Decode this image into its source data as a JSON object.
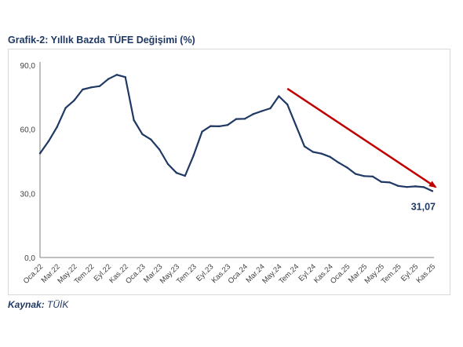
{
  "title": "Grafik-2: Yıllık Bazda TÜFE Değişimi (%)",
  "source": {
    "label": "Kaynak:",
    "value": "TÜİK"
  },
  "colors": {
    "line": "#1f3864",
    "arrow": "#c00000",
    "axis": "#7f7f7f",
    "title": "#1f3864"
  },
  "chart_data": {
    "type": "line",
    "title": "",
    "xlabel": "",
    "ylabel": "",
    "ylim": [
      0,
      90
    ],
    "yticks": [
      0,
      30,
      60,
      90
    ],
    "ytick_labels": [
      "0,0",
      "30,0",
      "60,0",
      "90,0"
    ],
    "grid": false,
    "categories": [
      "Oca.22",
      "Şub.22",
      "Mar.22",
      "Nis.22",
      "May.22",
      "Haz.22",
      "Tem.22",
      "Ağu.22",
      "Eyl.22",
      "Eki.22",
      "Kas.22",
      "Ara.22",
      "Oca.23",
      "Şub.23",
      "Mar.23",
      "Nis.23",
      "May.23",
      "Haz.23",
      "Tem.23",
      "Ağu.23",
      "Eyl.23",
      "Eki.23",
      "Kas.23",
      "Ara.23",
      "Oca.24",
      "Şub.24",
      "Mar.24",
      "Nis.24",
      "May.24",
      "Haz.24",
      "Tem.24",
      "Ağu.24",
      "Eyl.24",
      "Eki.24",
      "Kas.24",
      "Ara.24",
      "Oca.25",
      "Şub.25",
      "Mar.25",
      "Nis.25",
      "May.25",
      "Haz.25",
      "Tem.25",
      "Ağu.25",
      "Eyl.25",
      "Eki.25",
      "Kas.25"
    ],
    "x_tick_labels": [
      "Oca.22",
      "Mar.22",
      "May.22",
      "Tem.22",
      "Eyl.22",
      "Kas.22",
      "Oca.23",
      "Mar.23",
      "May.23",
      "Tem.23",
      "Eyl.23",
      "Kas.23",
      "Oca.24",
      "Mar.24",
      "May.24",
      "Tem.24",
      "Eyl.24",
      "Kas.24",
      "Oca.25",
      "Mar.25",
      "May.25",
      "Tem.25",
      "Eyl.25",
      "Kas.25"
    ],
    "series": [
      {
        "values": [
          48.7,
          54.4,
          61.1,
          70.0,
          73.5,
          78.6,
          79.6,
          80.2,
          83.5,
          85.5,
          84.4,
          64.3,
          57.7,
          55.2,
          50.5,
          43.7,
          39.6,
          38.2,
          47.8,
          58.9,
          61.5,
          61.4,
          62.0,
          64.8,
          64.9,
          67.1,
          68.5,
          69.8,
          75.5,
          71.6,
          61.8,
          52.0,
          49.4,
          48.6,
          47.1,
          44.4,
          42.1,
          39.1,
          38.1,
          37.9,
          35.4,
          35.1,
          33.5,
          33.0,
          33.3,
          32.9,
          31.07
        ]
      }
    ],
    "annotations": [
      {
        "text": "31,07",
        "category": "Kas.25",
        "value": 31.07
      }
    ],
    "trend_arrow": {
      "from": {
        "category": "Haz.24",
        "value": 79
      },
      "to": {
        "category": "Kas.25",
        "value": 33
      }
    }
  }
}
